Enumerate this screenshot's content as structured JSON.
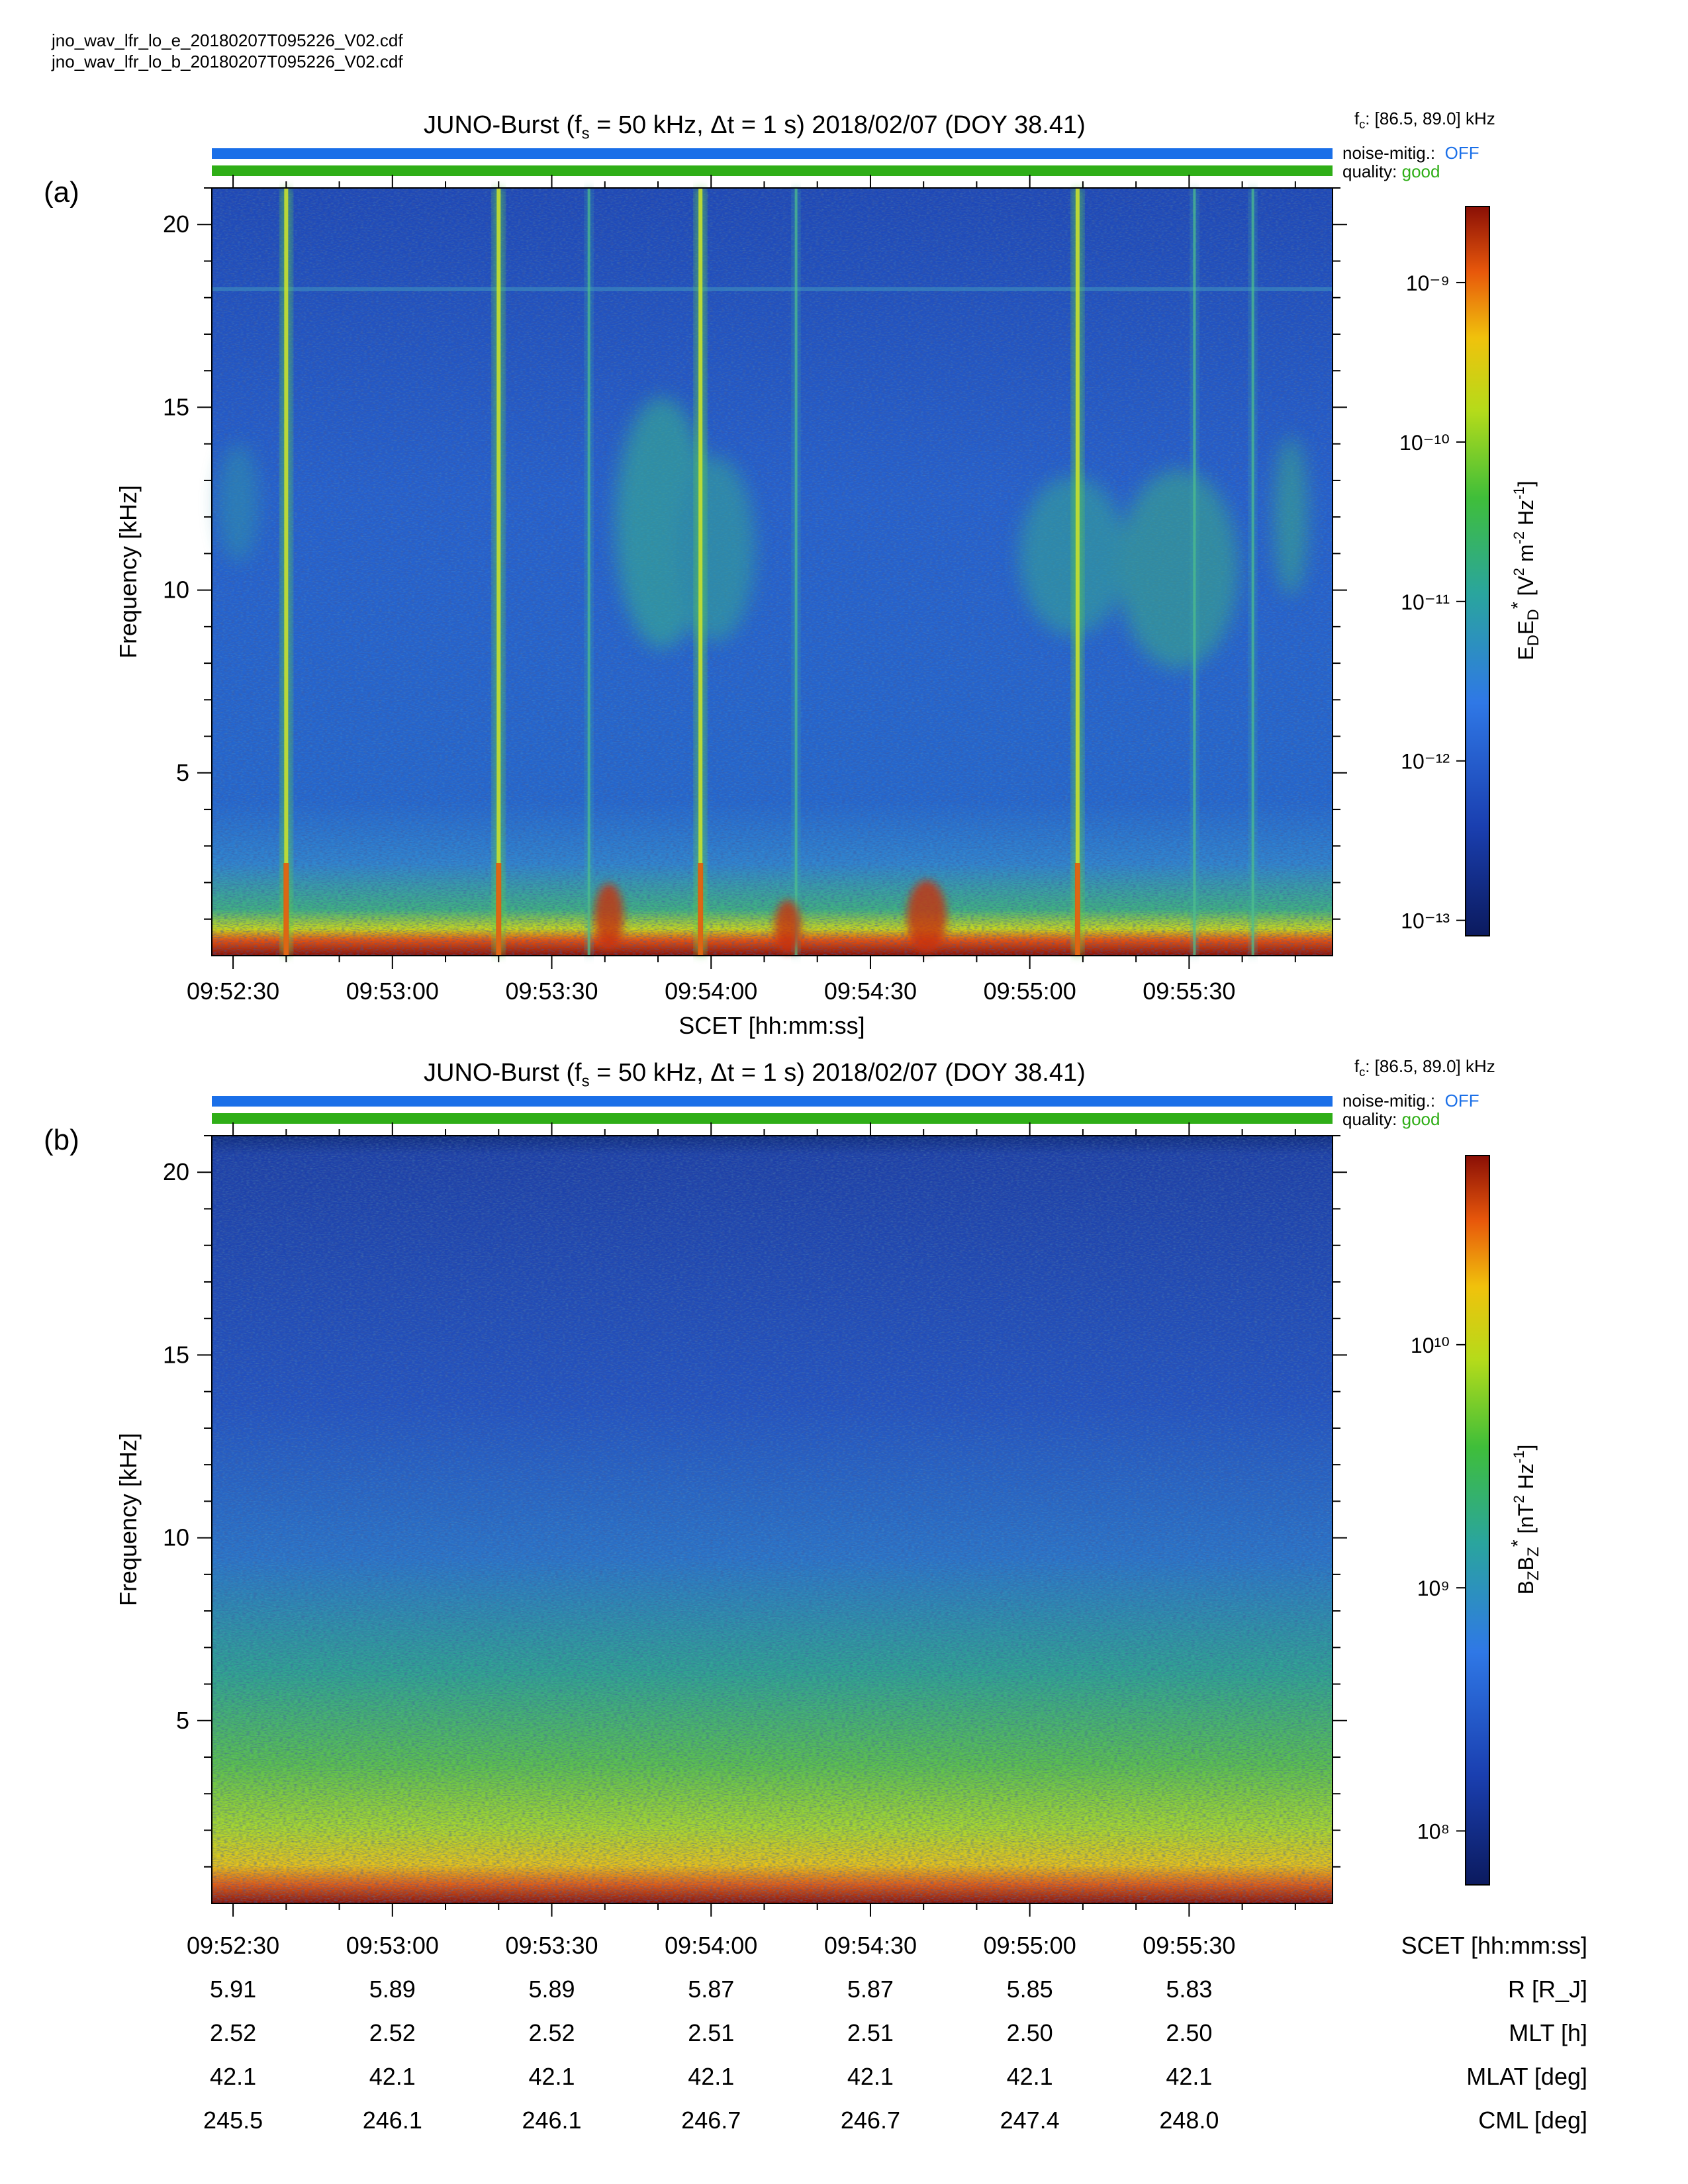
{
  "header": {
    "file_e": "jno_wav_lfr_lo_e_20180207T095226_V02.cdf",
    "file_b": "jno_wav_lfr_lo_b_20180207T095226_V02.cdf"
  },
  "panels": [
    {
      "label": "(a)",
      "title_prefix": "JUNO-Burst (f",
      "title_sub": "s",
      "title_suffix": " = 50 kHz, Δt = 1 s)  2018/02/07 (DOY 38.41)",
      "fc_prefix": "f",
      "fc_sub": "c",
      "fc_value": ": [86.5, 89.0] kHz",
      "noise_label": "noise-mitig.:",
      "noise_value": "OFF",
      "quality_label": "quality:",
      "quality_value": "good",
      "colorbar_title": "E_D E_D* [V² m⁻² Hz⁻¹]"
    },
    {
      "label": "(b)",
      "title_prefix": "JUNO-Burst (f",
      "title_sub": "s",
      "title_suffix": " = 50 kHz, Δt = 1 s)  2018/02/07 (DOY 38.41)",
      "fc_prefix": "f",
      "fc_sub": "c",
      "fc_value": ": [86.5, 89.0] kHz",
      "noise_label": "noise-mitig.:",
      "noise_value": "OFF",
      "quality_label": "quality:",
      "quality_value": "good",
      "colorbar_title": "B_Z B_Z* [nT² Hz⁻¹]"
    }
  ],
  "colors": {
    "noise_bar": "#1a6fe8",
    "quality_bar": "#2fae17"
  },
  "chart_data": [
    {
      "type": "heatmap",
      "panel": "(a)",
      "title": "JUNO-Burst (fs = 50 kHz, Δt = 1 s)  2018/02/07 (DOY 38.41)",
      "xlabel": "SCET [hh:mm:ss]",
      "ylabel": "Frequency [kHz]",
      "xlim": [
        "09:52:26",
        "09:55:57"
      ],
      "ylim": [
        0,
        21
      ],
      "x_ticks": [
        "09:52:30",
        "09:53:00",
        "09:53:30",
        "09:54:00",
        "09:54:30",
        "09:55:00",
        "09:55:30"
      ],
      "y_ticks": [
        5,
        10,
        15,
        20
      ],
      "colorbar": {
        "label": "E_D E_D* [V² m⁻² Hz⁻¹]",
        "scale": "log",
        "range": [
          8e-14,
          3e-09
        ],
        "tick_labels": [
          "10⁻⁹",
          "10⁻¹⁰",
          "10⁻¹¹",
          "10⁻¹²",
          "10⁻¹³"
        ],
        "tick_values": [
          1e-09,
          1e-10,
          1e-11,
          1e-12,
          1e-13
        ]
      },
      "features": {
        "vertical_bursts_time": [
          "09:52:40",
          "09:53:20",
          "09:53:37",
          "09:53:58",
          "09:54:16",
          "09:55:09",
          "09:55:31",
          "09:55:42"
        ],
        "horizontal_line_kHz": 18.2,
        "low_freq_band_kHz": [
          0,
          1.5
        ]
      }
    },
    {
      "type": "heatmap",
      "panel": "(b)",
      "title": "JUNO-Burst (fs = 50 kHz, Δt = 1 s)  2018/02/07 (DOY 38.41)",
      "xlabel": "SCET [hh:mm:ss]",
      "ylabel": "Frequency [kHz]",
      "xlim": [
        "09:52:26",
        "09:55:57"
      ],
      "ylim": [
        0,
        21
      ],
      "x_ticks": [
        "09:52:30",
        "09:53:00",
        "09:53:30",
        "09:54:00",
        "09:54:30",
        "09:55:00",
        "09:55:30"
      ],
      "y_ticks": [
        5,
        10,
        15,
        20
      ],
      "colorbar": {
        "label": "B_Z B_Z* [nT² Hz⁻¹]",
        "scale": "log",
        "range": [
          60000000.0,
          60000000000.0
        ],
        "tick_labels": [
          "10¹⁰",
          "10⁹",
          "10⁸"
        ],
        "tick_values": [
          10000000000.0,
          1000000000.0,
          100000000.0
        ]
      }
    }
  ],
  "ephemeris": {
    "row_labels": [
      "SCET [hh:mm:ss]",
      "R [R_J]",
      "MLT [h]",
      "MLAT [deg]",
      "CML [deg]"
    ],
    "scet": [
      "09:52:30",
      "09:53:00",
      "09:53:30",
      "09:54:00",
      "09:54:30",
      "09:55:00",
      "09:55:30"
    ],
    "R": [
      "5.91",
      "5.89",
      "5.89",
      "5.87",
      "5.87",
      "5.85",
      "5.83"
    ],
    "MLT": [
      "2.52",
      "2.52",
      "2.52",
      "2.51",
      "2.51",
      "2.50",
      "2.50"
    ],
    "MLAT": [
      "42.1",
      "42.1",
      "42.1",
      "42.1",
      "42.1",
      "42.1",
      "42.1"
    ],
    "CML": [
      "245.5",
      "246.1",
      "246.1",
      "246.7",
      "246.7",
      "247.4",
      "248.0"
    ]
  },
  "axis_text": {
    "x_title": "SCET [hh:mm:ss]",
    "y_title": "Frequency [kHz]"
  }
}
